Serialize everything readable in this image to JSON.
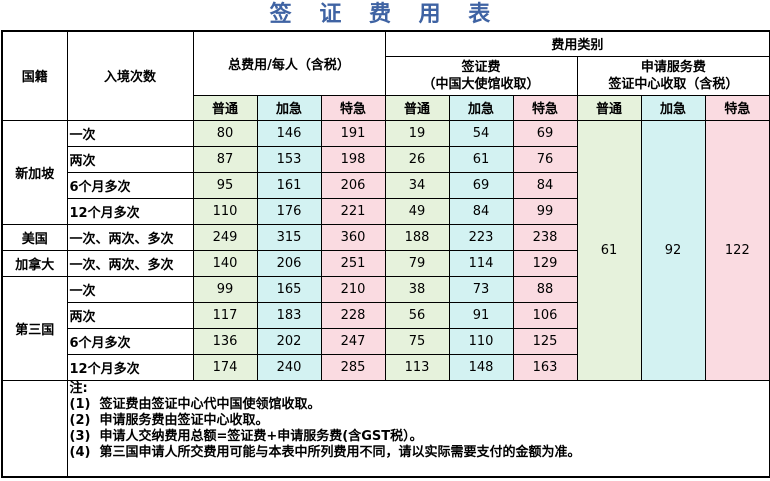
{
  "title": "签 证 费 用 表",
  "headers": {
    "nationality": "国籍",
    "entries": "入境次数",
    "total": "总费用/每人（含税）",
    "fee_category": "费用类别",
    "visa_fee": "签证费",
    "visa_fee_sub": "（中国大使馆收取）",
    "service_fee": "申请服务费",
    "service_fee_sub": "签证中心收取（含税）",
    "speeds": [
      "普通",
      "加急",
      "特急"
    ]
  },
  "colors": {
    "regular": "#e6f2dc",
    "express": "#d3f2f2",
    "urgent": "#fadbe1",
    "title": "#3f63a3"
  },
  "groups": [
    {
      "country": "新加坡",
      "rows": [
        {
          "entry": "一次",
          "total": [
            "80",
            "146",
            "191"
          ],
          "visa": [
            "19",
            "54",
            "69"
          ]
        },
        {
          "entry": "两次",
          "total": [
            "87",
            "153",
            "198"
          ],
          "visa": [
            "26",
            "61",
            "76"
          ]
        },
        {
          "entry": "6个月多次",
          "total": [
            "95",
            "161",
            "206"
          ],
          "visa": [
            "34",
            "69",
            "84"
          ]
        },
        {
          "entry": "12个月多次",
          "total": [
            "110",
            "176",
            "221"
          ],
          "visa": [
            "49",
            "84",
            "99"
          ]
        }
      ]
    },
    {
      "country": "美国",
      "rows": [
        {
          "entry": "一次、两次、多次",
          "total": [
            "249",
            "315",
            "360"
          ],
          "visa": [
            "188",
            "223",
            "238"
          ]
        }
      ]
    },
    {
      "country": "加拿大",
      "rows": [
        {
          "entry": "一次、两次、多次",
          "total": [
            "140",
            "206",
            "251"
          ],
          "visa": [
            "79",
            "114",
            "129"
          ]
        }
      ]
    },
    {
      "country": "第三国",
      "rows": [
        {
          "entry": "一次",
          "total": [
            "99",
            "165",
            "210"
          ],
          "visa": [
            "38",
            "73",
            "88"
          ]
        },
        {
          "entry": "两次",
          "total": [
            "117",
            "183",
            "228"
          ],
          "visa": [
            "56",
            "91",
            "106"
          ]
        },
        {
          "entry": "6个月多次",
          "total": [
            "136",
            "202",
            "247"
          ],
          "visa": [
            "75",
            "110",
            "125"
          ]
        },
        {
          "entry": "12个月多次",
          "total": [
            "174",
            "240",
            "285"
          ],
          "visa": [
            "113",
            "148",
            "163"
          ]
        }
      ]
    }
  ],
  "service_fees": [
    "61",
    "92",
    "122"
  ],
  "notes": {
    "heading": "注:",
    "items": [
      {
        "num": "(1)",
        "text": "签证费由签证中心代中国使领馆收取。"
      },
      {
        "num": "(2)",
        "text": "申请服务费由签证中心收取。"
      },
      {
        "num": "(3)",
        "text": "申请人交纳费用总额=签证费+申请服务费(含GST税）。"
      },
      {
        "num": "(4)",
        "text": "第三国申请人所交费用可能与本表中所列费用不同，请以实际需要支付的金额为准。"
      }
    ]
  }
}
